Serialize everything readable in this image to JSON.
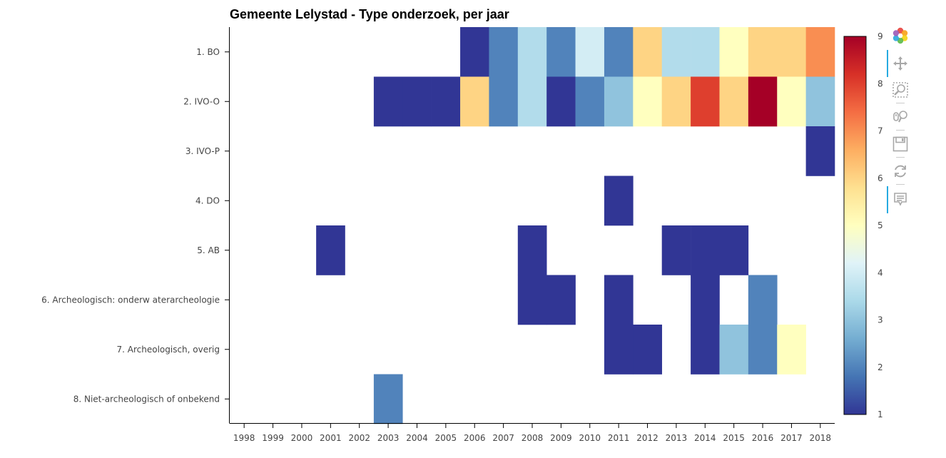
{
  "chart_data": {
    "type": "heatmap",
    "title": "Gemeente Lelystad - Type onderzoek, per jaar",
    "xlabel": "",
    "ylabel": "",
    "x_categories": [
      "1998",
      "1999",
      "2000",
      "2001",
      "2002",
      "2003",
      "2004",
      "2005",
      "2006",
      "2007",
      "2008",
      "2009",
      "2010",
      "2011",
      "2012",
      "2013",
      "2014",
      "2015",
      "2016",
      "2017",
      "2018"
    ],
    "y_categories": [
      "1. BO",
      "2. IVO-O",
      "3. IVO-P",
      "4. DO",
      "5. AB",
      "6. Archeologisch: onderw aterarcheologie",
      "7. Archeologisch, overig",
      "8. Niet-archeologisch of onbekend"
    ],
    "cells": [
      {
        "y": "1. BO",
        "x": "2006",
        "value": 1
      },
      {
        "y": "1. BO",
        "x": "2007",
        "value": 2
      },
      {
        "y": "1. BO",
        "x": "2008",
        "value": 3.5
      },
      {
        "y": "1. BO",
        "x": "2009",
        "value": 2
      },
      {
        "y": "1. BO",
        "x": "2010",
        "value": 4
      },
      {
        "y": "1. BO",
        "x": "2011",
        "value": 2
      },
      {
        "y": "1. BO",
        "x": "2012",
        "value": 6
      },
      {
        "y": "1. BO",
        "x": "2013",
        "value": 3.5
      },
      {
        "y": "1. BO",
        "x": "2014",
        "value": 3.5
      },
      {
        "y": "1. BO",
        "x": "2015",
        "value": 5
      },
      {
        "y": "1. BO",
        "x": "2016",
        "value": 6
      },
      {
        "y": "1. BO",
        "x": "2017",
        "value": 6
      },
      {
        "y": "1. BO",
        "x": "2018",
        "value": 7
      },
      {
        "y": "2. IVO-O",
        "x": "2003",
        "value": 1
      },
      {
        "y": "2. IVO-O",
        "x": "2004",
        "value": 1
      },
      {
        "y": "2. IVO-O",
        "x": "2005",
        "value": 1
      },
      {
        "y": "2. IVO-O",
        "x": "2006",
        "value": 6
      },
      {
        "y": "2. IVO-O",
        "x": "2007",
        "value": 2
      },
      {
        "y": "2. IVO-O",
        "x": "2008",
        "value": 3.5
      },
      {
        "y": "2. IVO-O",
        "x": "2009",
        "value": 1
      },
      {
        "y": "2. IVO-O",
        "x": "2010",
        "value": 2
      },
      {
        "y": "2. IVO-O",
        "x": "2011",
        "value": 3
      },
      {
        "y": "2. IVO-O",
        "x": "2012",
        "value": 5
      },
      {
        "y": "2. IVO-O",
        "x": "2013",
        "value": 6
      },
      {
        "y": "2. IVO-O",
        "x": "2014",
        "value": 8
      },
      {
        "y": "2. IVO-O",
        "x": "2015",
        "value": 6
      },
      {
        "y": "2. IVO-O",
        "x": "2016",
        "value": 9
      },
      {
        "y": "2. IVO-O",
        "x": "2017",
        "value": 5
      },
      {
        "y": "2. IVO-O",
        "x": "2018",
        "value": 3
      },
      {
        "y": "3. IVO-P",
        "x": "2018",
        "value": 1
      },
      {
        "y": "4. DO",
        "x": "2011",
        "value": 1
      },
      {
        "y": "5. AB",
        "x": "2001",
        "value": 1
      },
      {
        "y": "5. AB",
        "x": "2008",
        "value": 1
      },
      {
        "y": "5. AB",
        "x": "2013",
        "value": 1
      },
      {
        "y": "5. AB",
        "x": "2014",
        "value": 1
      },
      {
        "y": "5. AB",
        "x": "2015",
        "value": 1
      },
      {
        "y": "6. Archeologisch: onderw aterarcheologie",
        "x": "2008",
        "value": 1
      },
      {
        "y": "6. Archeologisch: onderw aterarcheologie",
        "x": "2009",
        "value": 1
      },
      {
        "y": "6. Archeologisch: onderw aterarcheologie",
        "x": "2011",
        "value": 1
      },
      {
        "y": "6. Archeologisch: onderw aterarcheologie",
        "x": "2014",
        "value": 1
      },
      {
        "y": "6. Archeologisch: onderw aterarcheologie",
        "x": "2016",
        "value": 2
      },
      {
        "y": "7. Archeologisch, overig",
        "x": "2011",
        "value": 1
      },
      {
        "y": "7. Archeologisch, overig",
        "x": "2012",
        "value": 1
      },
      {
        "y": "7. Archeologisch, overig",
        "x": "2014",
        "value": 1
      },
      {
        "y": "7. Archeologisch, overig",
        "x": "2015",
        "value": 3
      },
      {
        "y": "7. Archeologisch, overig",
        "x": "2016",
        "value": 2
      },
      {
        "y": "7. Archeologisch, overig",
        "x": "2017",
        "value": 5
      },
      {
        "y": "8. Niet-archeologisch of onbekend",
        "x": "2003",
        "value": 2
      }
    ],
    "colorbar": {
      "range": [
        1,
        9
      ],
      "ticks": [
        "1",
        "2",
        "3",
        "4",
        "5",
        "6",
        "7",
        "8",
        "9"
      ],
      "palette": [
        "#313695",
        "#4575b4",
        "#74add1",
        "#abd9e9",
        "#e0f3f8",
        "#ffffbf",
        "#fee090",
        "#fdae61",
        "#f46d43",
        "#d73027",
        "#a50026"
      ]
    },
    "grid": false,
    "legend": "colorbar-right"
  },
  "toolbar": {
    "tools": [
      {
        "name": "bokeh-logo-icon",
        "interactable": true
      },
      {
        "name": "pan-tool-icon",
        "interactable": true,
        "active": true
      },
      {
        "name": "box-zoom-tool-icon",
        "interactable": true
      },
      {
        "name": "wheel-zoom-tool-icon",
        "interactable": true
      },
      {
        "name": "save-tool-icon",
        "interactable": true
      },
      {
        "name": "reset-tool-icon",
        "interactable": true
      },
      {
        "name": "hover-tool-icon",
        "interactable": true,
        "active": true
      }
    ]
  }
}
